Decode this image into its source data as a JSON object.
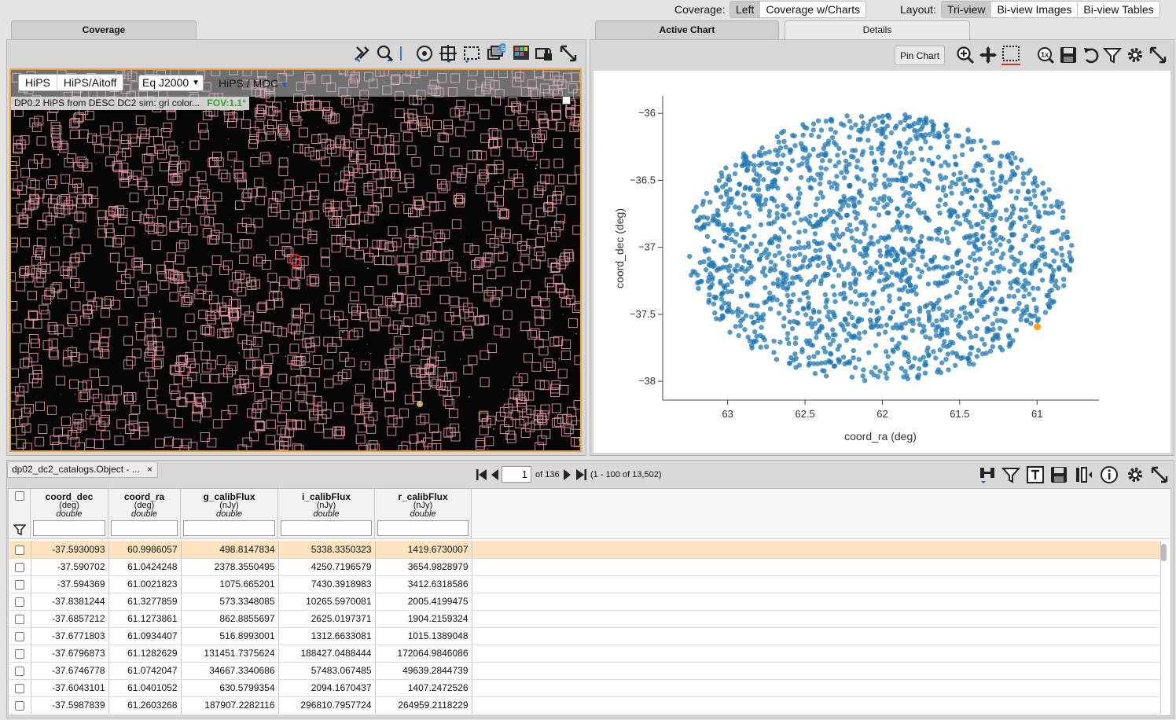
{
  "colors": {
    "accent": "#f4a32b",
    "point": "#1f77b4",
    "highlight": "#ff9f1c",
    "fov": "#2ecc40",
    "box": "#f0a0a8"
  },
  "top_bar": {
    "coverage_label": "Coverage:",
    "coverage_options": [
      {
        "label": "Left",
        "selected": true
      },
      {
        "label": "Coverage w/Charts",
        "selected": false
      }
    ],
    "layout_label": "Layout:",
    "layout_options": [
      {
        "label": "Tri-view",
        "selected": true
      },
      {
        "label": "Bi-view Images",
        "selected": false
      },
      {
        "label": "Bi-view Tables",
        "selected": false
      }
    ]
  },
  "left_panel": {
    "tab": "Coverage",
    "toolbar_icons": [
      "tools-icon",
      "zoom-icon",
      "divider-icon",
      "recenter-icon",
      "crosshair-icon",
      "select-area-icon",
      "layers-icon",
      "color-icon",
      "lock-icon",
      "expand-icon"
    ],
    "layers_badge": "5",
    "view_buttons": [
      {
        "label": "HiPS",
        "selected": false
      },
      {
        "label": "HiPS/Aitoff",
        "selected": true
      }
    ],
    "coord_system": "Eq J2000",
    "hips_moc_label": "HiPS / MOC",
    "image_title": "DP0.2 HiPS from DESC DC2 sim: gri color...",
    "fov": "FOV:1.1°"
  },
  "right_panel": {
    "tabs": [
      {
        "label": "Active Chart",
        "active": true
      },
      {
        "label": "Details",
        "active": false
      }
    ],
    "pin_chart_label": "Pin Chart",
    "toolbar_icons": [
      "zoom-in-icon",
      "pan-icon",
      "select-icon",
      "zoom-1x-icon",
      "save-icon",
      "restore-icon",
      "filter-icon",
      "settings-icon",
      "expand-icon"
    ],
    "zoom_1x_label": "1x"
  },
  "chart_data": {
    "type": "scatter",
    "xlabel": "coord_ra (deg)",
    "ylabel": "coord_dec (deg)",
    "xlim": [
      63.42,
      60.6
    ],
    "ylim": [
      -38.14,
      -35.87
    ],
    "x_ticks": [
      "63",
      "62.5",
      "62",
      "61.5",
      "61"
    ],
    "x_tick_values": [
      63,
      62.5,
      62,
      61.5,
      61
    ],
    "y_ticks": [
      "−36",
      "−36.5",
      "−37",
      "−37.5",
      "−38"
    ],
    "y_tick_values": [
      -36,
      -36.5,
      -37,
      -37.5,
      -38
    ],
    "series": [
      {
        "name": "dp02_dc2_catalogs.Object",
        "count": 13502,
        "center_ra": 62.02,
        "center_dec": -37.0,
        "ra_half_width": 1.25,
        "dec_half_width": 1.0
      }
    ],
    "highlighted_point": {
      "ra": 60.9986057,
      "dec": -37.593009
    }
  },
  "table_panel": {
    "tab_title": "dp02_dc2_catalogs.Object - ...",
    "close_symbol": "×",
    "page": "1",
    "of_pages": "of 136",
    "range": "(1 - 100 of 13,502)",
    "toolbar_icons": [
      "search-columns-icon",
      "filter-icon",
      "text-view-icon",
      "save-icon",
      "column-options-icon",
      "info-icon",
      "settings-icon",
      "expand-icon"
    ],
    "columns": [
      {
        "name": "coord_dec",
        "unit": "(deg)",
        "type": "double"
      },
      {
        "name": "coord_ra",
        "unit": "(deg)",
        "type": "double"
      },
      {
        "name": "g_calibFlux",
        "unit": "(nJy)",
        "type": "double"
      },
      {
        "name": "i_calibFlux",
        "unit": "(nJy)",
        "type": "double"
      },
      {
        "name": "r_calibFlux",
        "unit": "(nJy)",
        "type": "double"
      }
    ],
    "rows": [
      [
        "-37.5930093",
        "60.9986057",
        "498.8147834",
        "5338.3350323",
        "1419.6730007"
      ],
      [
        "-37.590702",
        "61.0424248",
        "2378.3550495",
        "4250.7196579",
        "3654.9828979"
      ],
      [
        "-37.594369",
        "61.0021823",
        "1075.665201",
        "7430.3918983",
        "3412.6318586"
      ],
      [
        "-37.8381244",
        "61.3277859",
        "573.3348085",
        "10265.5970081",
        "2005.4199475"
      ],
      [
        "-37.6857212",
        "61.1273861",
        "862.8855697",
        "2625.0197371",
        "1904.2159324"
      ],
      [
        "-37.6771803",
        "61.0934407",
        "516.8993001",
        "1312.6633081",
        "1015.1389048"
      ],
      [
        "-37.6796873",
        "61.1282629",
        "131451.7375624",
        "188427.0488444",
        "172064.9846086"
      ],
      [
        "-37.6746778",
        "61.0742047",
        "34667.3340686",
        "57483.067485",
        "49639.2844739"
      ],
      [
        "-37.6043101",
        "61.0401052",
        "630.5799354",
        "2094.1670437",
        "1407.2472526"
      ],
      [
        "-37.5987839",
        "61.2603268",
        "187907.2282116",
        "296810.7957724",
        "264959.2118229"
      ]
    ]
  }
}
